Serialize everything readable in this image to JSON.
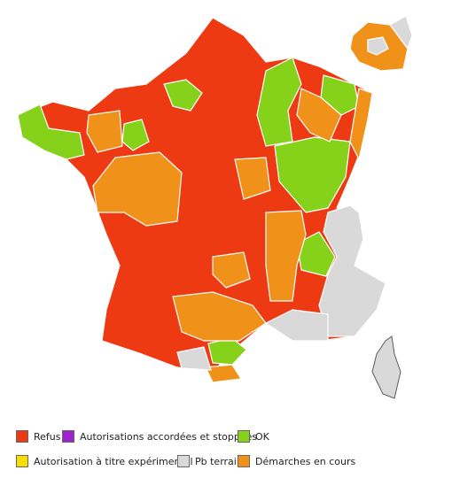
{
  "legend": {
    "items": [
      {
        "label": "Refus",
        "color": "#ee3a12"
      },
      {
        "label": "Autorisations accordées et stoppées",
        "color": "#a020d0"
      },
      {
        "label": "OK",
        "color": "#86d11a"
      },
      {
        "label": "Autorisation à titre expérimental",
        "color": "#f7e000"
      },
      {
        "label": "Pb terrain",
        "color": "#d9d9d9"
      },
      {
        "label": "Démarches en cours",
        "color": "#f0921a"
      }
    ]
  }
}
